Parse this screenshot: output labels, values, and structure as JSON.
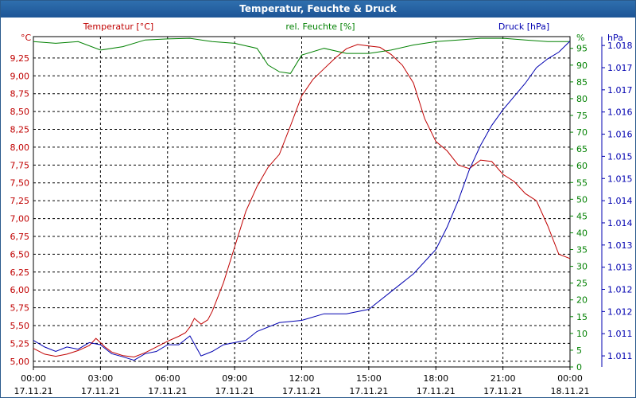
{
  "window": {
    "title": "Temperatur, Feuchte & Druck"
  },
  "colors": {
    "temperature": "#c00000",
    "humidity": "#008000",
    "pressure": "#0000b0",
    "grid": "#000000"
  },
  "chart_data": {
    "type": "line",
    "title": "Temperatur, Feuchte & Druck",
    "series_labels": {
      "temperature": "Temperatur [°C]",
      "humidity": "rel. Feuchte [%]",
      "pressure": "Druck [hPa]"
    },
    "axes": {
      "left": {
        "unit": "°C",
        "range": [
          4.92,
          9.55
        ],
        "ticks": [
          5.0,
          5.25,
          5.5,
          5.75,
          6.0,
          6.25,
          6.5,
          6.75,
          7.0,
          7.25,
          7.5,
          7.75,
          8.0,
          8.25,
          8.5,
          8.75,
          9.0,
          9.25
        ],
        "tick_labels": [
          "5,00",
          "5,25",
          "5,50",
          "5,75",
          "6,00",
          "6,25",
          "6,50",
          "6,75",
          "7,00",
          "7,25",
          "7,50",
          "7,75",
          "8,00",
          "8,25",
          "8,50",
          "8,75",
          "9,00",
          "9,25"
        ]
      },
      "right1": {
        "unit": "%",
        "range": [
          0,
          98.5
        ],
        "ticks": [
          0,
          5,
          10,
          15,
          20,
          25,
          30,
          35,
          40,
          45,
          50,
          55,
          60,
          65,
          70,
          75,
          80,
          85,
          90,
          95
        ],
        "tick_labels": [
          "0",
          "5",
          "10",
          "15",
          "20",
          "25",
          "30",
          "35",
          "40",
          "45",
          "50",
          "55",
          "60",
          "65",
          "70",
          "75",
          "80",
          "85",
          "90",
          "95"
        ]
      },
      "right2": {
        "unit": "hPa",
        "range": [
          1010.75,
          1018.2
        ],
        "ticks": [
          1011.0,
          1011.5,
          1012.0,
          1012.5,
          1013.0,
          1013.5,
          1014.0,
          1014.5,
          1015.0,
          1015.5,
          1016.0,
          1016.5,
          1017.0,
          1017.5,
          1018.0
        ],
        "tick_labels": [
          "1.011",
          "1.011",
          "1.012",
          "1.012",
          "1.013",
          "1.013",
          "1.014",
          "1.014",
          "1.015",
          "1.015",
          "1.016",
          "1.016",
          "1.017",
          "1.017",
          "1.018"
        ]
      },
      "x": {
        "range": [
          0,
          24
        ],
        "ticks": [
          0,
          3,
          6,
          9,
          12,
          15,
          18,
          21,
          24
        ],
        "tick_labels": [
          "00:00",
          "03:00",
          "06:00",
          "09:00",
          "12:00",
          "15:00",
          "18:00",
          "21:00",
          "00:00"
        ],
        "date_labels": [
          "17.11.21",
          "17.11.21",
          "17.11.21",
          "17.11.21",
          "17.11.21",
          "17.11.21",
          "17.11.21",
          "17.11.21",
          "18.11.21"
        ]
      }
    },
    "series": [
      {
        "name": "Temperatur [°C]",
        "axis": "left",
        "x": [
          0,
          0.5,
          1,
          1.5,
          2,
          2.5,
          2.8,
          3.2,
          3.5,
          4,
          4.5,
          5,
          5.5,
          6,
          6.5,
          6.8,
          7,
          7.2,
          7.5,
          7.8,
          8,
          8.5,
          9,
          9.5,
          10,
          10.5,
          11,
          11.5,
          12,
          12.5,
          13,
          13.5,
          14,
          14.5,
          15,
          15.5,
          16,
          16.5,
          17,
          17.5,
          18,
          18.5,
          19,
          19.5,
          20,
          20.5,
          21,
          21.5,
          22,
          22.5,
          23,
          23.5,
          24
        ],
        "values": [
          5.18,
          5.1,
          5.07,
          5.1,
          5.15,
          5.22,
          5.32,
          5.2,
          5.13,
          5.08,
          5.06,
          5.12,
          5.2,
          5.28,
          5.35,
          5.4,
          5.48,
          5.6,
          5.52,
          5.58,
          5.7,
          6.1,
          6.6,
          7.1,
          7.45,
          7.72,
          7.9,
          8.3,
          8.72,
          8.95,
          9.1,
          9.25,
          9.38,
          9.44,
          9.42,
          9.4,
          9.3,
          9.15,
          8.9,
          8.4,
          8.08,
          7.95,
          7.75,
          7.7,
          7.82,
          7.8,
          7.62,
          7.52,
          7.35,
          7.25,
          6.9,
          6.5,
          6.44
        ]
      },
      {
        "name": "rel. Feuchte [%]",
        "axis": "right1",
        "x": [
          0,
          1,
          2,
          3,
          4,
          5,
          6,
          7,
          8,
          9,
          10,
          10.5,
          11,
          11.5,
          12,
          13,
          14,
          15,
          16,
          17,
          18,
          19,
          20,
          21,
          22,
          23,
          24
        ],
        "values": [
          97,
          96.5,
          97,
          94.5,
          95.5,
          97.5,
          97.8,
          98,
          97,
          96.5,
          95,
          90,
          88,
          87.5,
          93,
          95,
          93.5,
          93.5,
          94.5,
          96,
          97,
          97.5,
          98,
          98,
          97.5,
          97,
          97
        ]
      },
      {
        "name": "Druck [hPa]",
        "axis": "right2",
        "x": [
          0,
          0.5,
          1,
          1.5,
          2,
          2.5,
          3,
          3.5,
          4,
          4.5,
          5,
          5.5,
          6,
          6.5,
          7,
          7.5,
          8,
          8.5,
          9,
          9.5,
          10,
          11,
          12,
          13,
          14,
          15,
          16,
          17,
          18,
          18.5,
          19,
          19.5,
          20,
          20.5,
          21,
          21.5,
          22,
          22.5,
          23,
          23.5,
          24
        ],
        "values": [
          1011.35,
          1011.2,
          1011.1,
          1011.2,
          1011.15,
          1011.3,
          1011.25,
          1011.05,
          1010.98,
          1010.9,
          1011.05,
          1011.1,
          1011.25,
          1011.25,
          1011.45,
          1011.0,
          1011.1,
          1011.25,
          1011.3,
          1011.35,
          1011.55,
          1011.75,
          1011.8,
          1011.95,
          1011.95,
          1012.05,
          1012.45,
          1012.85,
          1013.4,
          1013.9,
          1014.5,
          1015.2,
          1015.75,
          1016.2,
          1016.55,
          1016.85,
          1017.15,
          1017.5,
          1017.7,
          1017.85,
          1018.1
        ]
      }
    ]
  }
}
